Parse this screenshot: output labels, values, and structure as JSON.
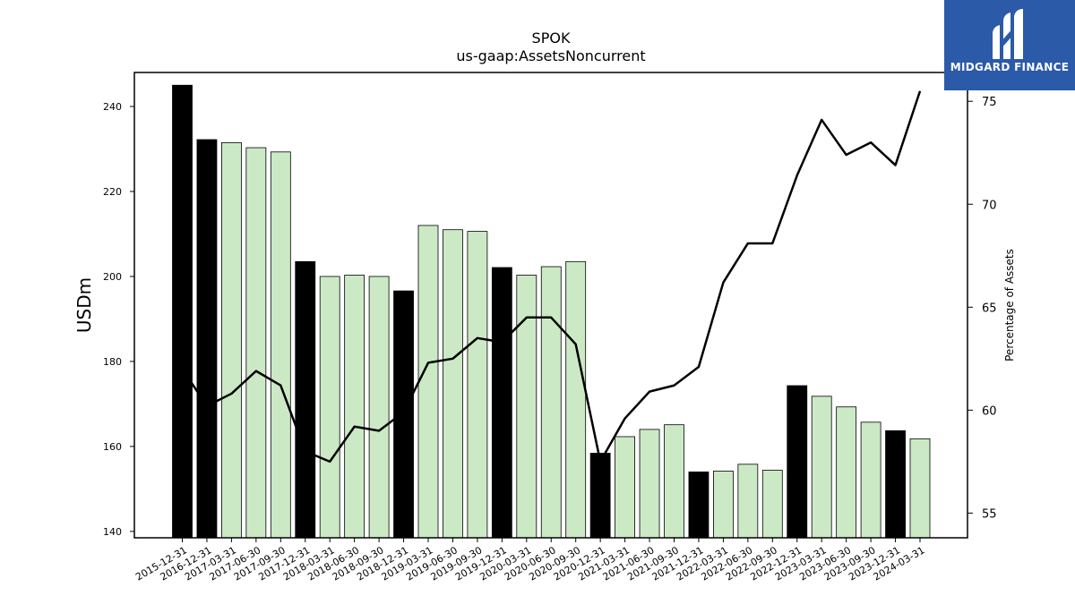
{
  "chart_data": {
    "type": "bar",
    "title": "SPOK",
    "subtitle": "us-gaap:AssetsNoncurrent",
    "ylabel": "USDm",
    "y2label": "Percentage of Assets",
    "ylim": [
      138.5,
      248
    ],
    "y2lim": [
      53.8,
      76.4
    ],
    "yticks": [
      140,
      160,
      180,
      200,
      220,
      240
    ],
    "y2ticks": [
      55,
      60,
      65,
      70,
      75
    ],
    "categories": [
      "2015-12-31",
      "2016-12-31",
      "2017-03-31",
      "2017-06-30",
      "2017-09-30",
      "2017-12-31",
      "2018-03-31",
      "2018-06-30",
      "2018-09-30",
      "2018-12-31",
      "2019-03-31",
      "2019-06-30",
      "2019-09-30",
      "2019-12-31",
      "2020-03-31",
      "2020-06-30",
      "2020-09-30",
      "2020-12-31",
      "2021-03-31",
      "2021-06-30",
      "2021-09-30",
      "2021-12-31",
      "2022-03-31",
      "2022-06-30",
      "2022-09-30",
      "2022-12-31",
      "2023-03-31",
      "2023-06-30",
      "2023-09-30",
      "2023-12-31",
      "2024-03-31"
    ],
    "series": [
      {
        "type": "bar",
        "values": [
          245.0,
          232.2,
          231.5,
          230.3,
          229.3,
          203.5,
          200.0,
          200.3,
          200.0,
          196.6,
          212.0,
          211.0,
          210.6,
          202.1,
          200.3,
          202.3,
          203.5,
          158.4,
          162.3,
          164.0,
          165.1,
          154.0,
          154.2,
          155.8,
          154.4,
          174.3,
          171.8,
          169.3,
          165.7,
          163.7,
          161.8
        ],
        "annual": [
          true,
          true,
          false,
          false,
          false,
          true,
          false,
          false,
          false,
          true,
          false,
          false,
          false,
          true,
          false,
          false,
          false,
          true,
          false,
          false,
          false,
          true,
          false,
          false,
          false,
          true,
          false,
          false,
          false,
          true,
          false
        ],
        "color_annual": "#000000",
        "color_quarterly": "#cce9c6"
      },
      {
        "type": "line",
        "axis": "right",
        "values": [
          62.0,
          60.2,
          60.8,
          61.9,
          61.2,
          58.0,
          57.5,
          59.2,
          59.0,
          59.9,
          62.3,
          62.5,
          63.5,
          63.3,
          64.5,
          64.5,
          63.2,
          57.5,
          59.6,
          60.9,
          61.2,
          62.1,
          66.2,
          68.1,
          68.1,
          71.4,
          74.1,
          72.4,
          73.0,
          71.9,
          75.5
        ],
        "color": "#000000"
      }
    ]
  },
  "logo": {
    "text": "MIDGARD FINANCE",
    "color": "#2b5aa8"
  }
}
